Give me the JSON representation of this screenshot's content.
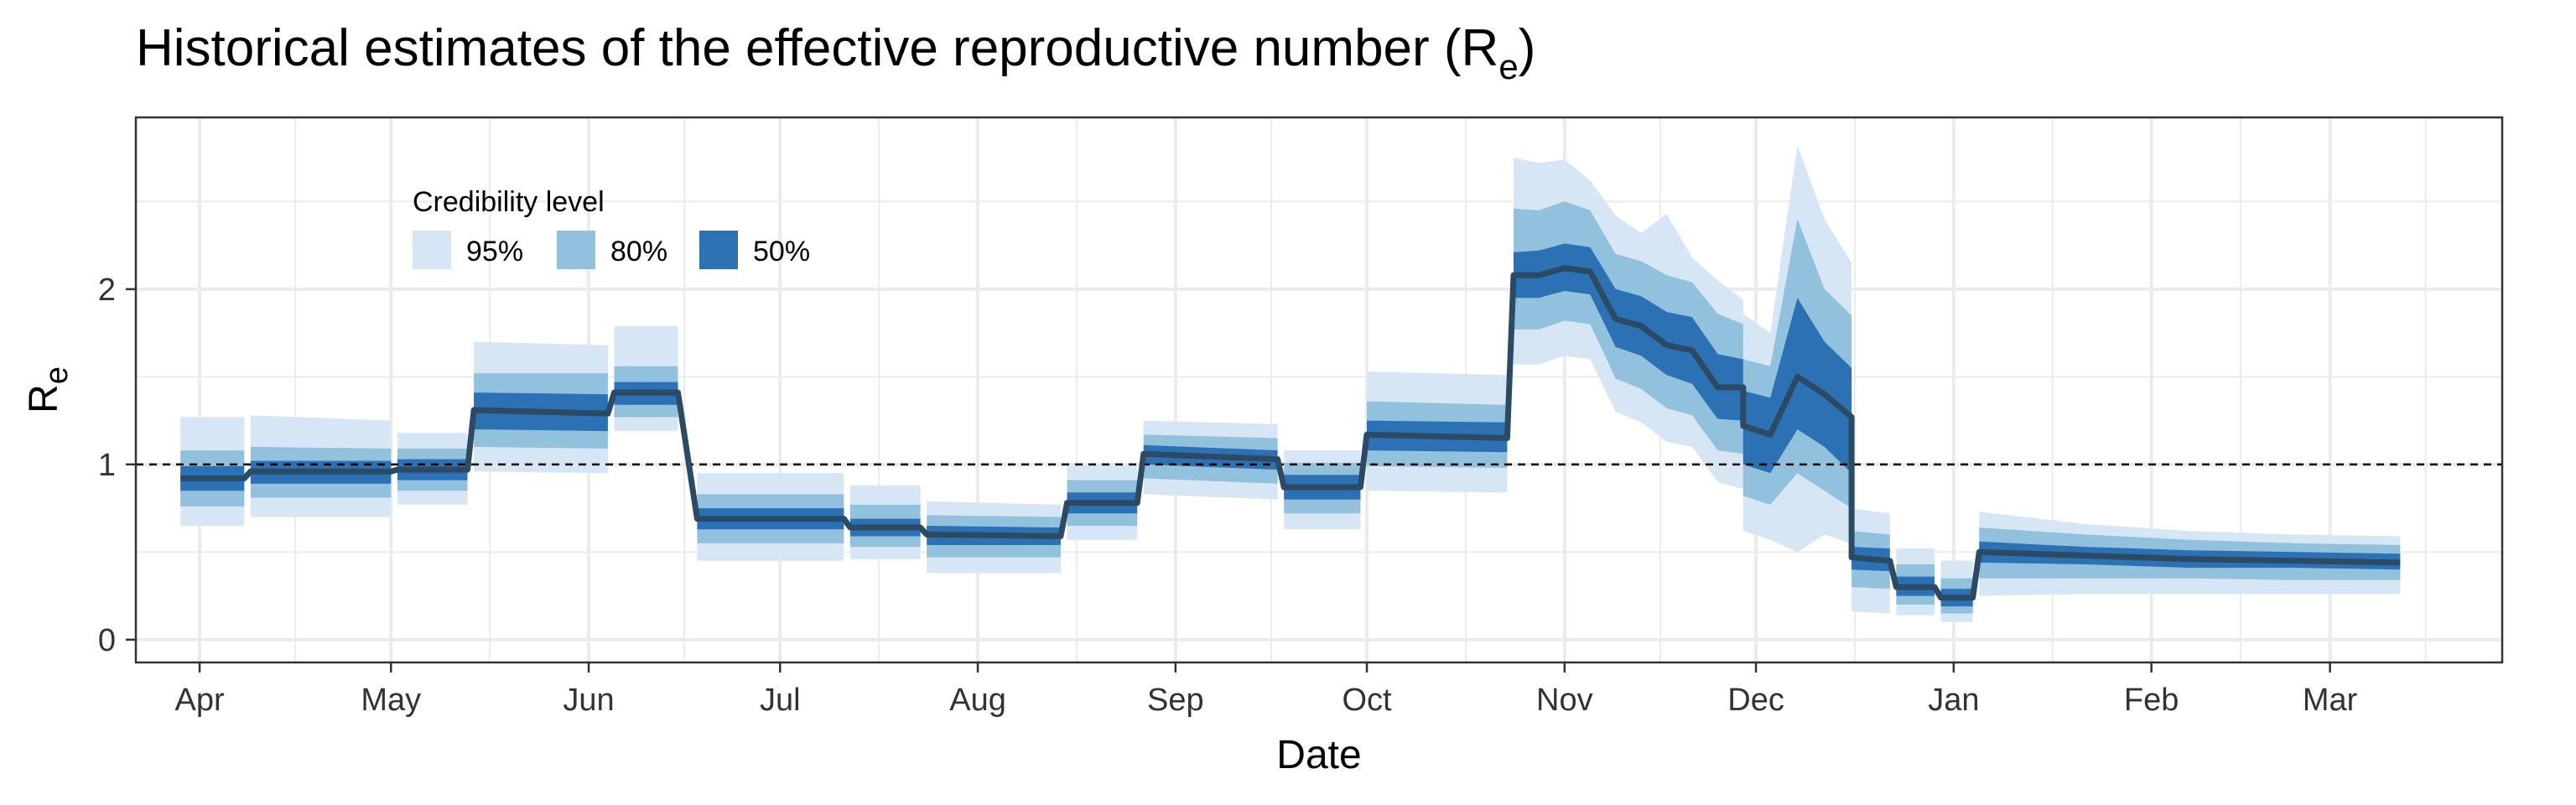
{
  "chart_data": {
    "type": "area",
    "title": "Historical estimates of the effective reproductive number (R",
    "title_subscript": "e",
    "title_suffix": ")",
    "xlabel": "Date",
    "ylabel": "R",
    "ylabel_subscript": "e",
    "x_ticks": [
      {
        "date": "2020-04-01",
        "label": "Apr"
      },
      {
        "date": "2020-05-01",
        "label": "May"
      },
      {
        "date": "2020-06-01",
        "label": "Jun"
      },
      {
        "date": "2020-07-01",
        "label": "Jul"
      },
      {
        "date": "2020-08-01",
        "label": "Aug"
      },
      {
        "date": "2020-09-01",
        "label": "Sep"
      },
      {
        "date": "2020-10-01",
        "label": "Oct"
      },
      {
        "date": "2020-11-01",
        "label": "Nov"
      },
      {
        "date": "2020-12-01",
        "label": "Dec"
      },
      {
        "date": "2021-01-01",
        "label": "Jan"
      },
      {
        "date": "2021-02-01",
        "label": "Feb"
      },
      {
        "date": "2021-03-01",
        "label": "Mar"
      }
    ],
    "xlim": [
      "2020-03-22",
      "2021-03-28"
    ],
    "y_ticks": [
      0,
      1,
      2
    ],
    "ylim": [
      -0.13,
      2.98
    ],
    "reference_line": 1,
    "grid": true,
    "legend": {
      "title": "Credibility level",
      "placement": "top-left",
      "items": [
        {
          "label": "95%",
          "color": "#d6e6f4"
        },
        {
          "label": "80%",
          "color": "#92c1de"
        },
        {
          "label": "50%",
          "color": "#2b71b4"
        }
      ]
    },
    "colors": {
      "band95": "#d6e6f4",
      "band80": "#92c1de",
      "band50": "#2b71b4",
      "median_line": "#2c4a63",
      "grid": "#ebebeb",
      "panel_border": "#333333"
    },
    "segments": [
      {
        "start": "2020-03-29",
        "end": "2020-04-08",
        "median": [
          0.92,
          0.92
        ],
        "lo50": [
          0.85,
          0.85
        ],
        "hi50": [
          0.99,
          0.99
        ],
        "lo80": [
          0.76,
          0.76
        ],
        "hi80": [
          1.08,
          1.08
        ],
        "lo95": [
          0.65,
          0.65
        ],
        "hi95": [
          1.27,
          1.27
        ]
      },
      {
        "start": "2020-04-09",
        "end": "2020-05-01",
        "median": [
          0.96,
          0.96
        ],
        "lo50": [
          0.89,
          0.89
        ],
        "hi50": [
          1.02,
          1.02
        ],
        "lo80": [
          0.81,
          0.81
        ],
        "hi80": [
          1.1,
          1.09
        ],
        "lo95": [
          0.7,
          0.7
        ],
        "hi95": [
          1.28,
          1.25
        ]
      },
      {
        "start": "2020-05-02",
        "end": "2020-05-13",
        "median": [
          0.97,
          0.97
        ],
        "lo50": [
          0.91,
          0.91
        ],
        "hi50": [
          1.03,
          1.03
        ],
        "lo80": [
          0.85,
          0.85
        ],
        "hi80": [
          1.09,
          1.09
        ],
        "lo95": [
          0.77,
          0.77
        ],
        "hi95": [
          1.18,
          1.18
        ]
      },
      {
        "start": "2020-05-14",
        "end": "2020-06-04",
        "median": [
          1.31,
          1.29
        ],
        "lo50": [
          1.2,
          1.19
        ],
        "hi50": [
          1.41,
          1.4
        ],
        "lo80": [
          1.1,
          1.09
        ],
        "hi80": [
          1.52,
          1.52
        ],
        "lo95": [
          0.96,
          0.95
        ],
        "hi95": [
          1.7,
          1.68
        ]
      },
      {
        "start": "2020-06-05",
        "end": "2020-06-15",
        "median": [
          1.41,
          1.41
        ],
        "lo50": [
          1.34,
          1.34
        ],
        "hi50": [
          1.47,
          1.47
        ],
        "lo80": [
          1.27,
          1.27
        ],
        "hi80": [
          1.56,
          1.56
        ],
        "lo95": [
          1.19,
          1.19
        ],
        "hi95": [
          1.79,
          1.79
        ]
      },
      {
        "start": "2020-06-18",
        "end": "2020-07-11",
        "median": [
          0.69,
          0.69
        ],
        "lo50": [
          0.63,
          0.63
        ],
        "hi50": [
          0.75,
          0.75
        ],
        "lo80": [
          0.55,
          0.55
        ],
        "hi80": [
          0.83,
          0.83
        ],
        "lo95": [
          0.45,
          0.45
        ],
        "hi95": [
          0.95,
          0.95
        ]
      },
      {
        "start": "2020-07-12",
        "end": "2020-07-23",
        "median": [
          0.64,
          0.64
        ],
        "lo50": [
          0.59,
          0.59
        ],
        "hi50": [
          0.69,
          0.69
        ],
        "lo80": [
          0.53,
          0.53
        ],
        "hi80": [
          0.77,
          0.77
        ],
        "lo95": [
          0.46,
          0.46
        ],
        "hi95": [
          0.88,
          0.88
        ]
      },
      {
        "start": "2020-07-24",
        "end": "2020-08-14",
        "median": [
          0.6,
          0.59
        ],
        "lo50": [
          0.54,
          0.54
        ],
        "hi50": [
          0.65,
          0.64
        ],
        "lo80": [
          0.47,
          0.47
        ],
        "hi80": [
          0.71,
          0.7
        ],
        "lo95": [
          0.38,
          0.38
        ],
        "hi95": [
          0.79,
          0.77
        ]
      },
      {
        "start": "2020-08-15",
        "end": "2020-08-26",
        "median": [
          0.78,
          0.78
        ],
        "lo50": [
          0.72,
          0.72
        ],
        "hi50": [
          0.84,
          0.84
        ],
        "lo80": [
          0.65,
          0.65
        ],
        "hi80": [
          0.91,
          0.91
        ],
        "lo95": [
          0.57,
          0.57
        ],
        "hi95": [
          1.0,
          1.0
        ]
      },
      {
        "start": "2020-08-27",
        "end": "2020-09-17",
        "median": [
          1.06,
          1.03
        ],
        "lo50": [
          1.0,
          0.97
        ],
        "hi50": [
          1.11,
          1.08
        ],
        "lo80": [
          0.92,
          0.89
        ],
        "hi80": [
          1.17,
          1.15
        ],
        "lo95": [
          0.83,
          0.8
        ],
        "hi95": [
          1.25,
          1.23
        ]
      },
      {
        "start": "2020-09-18",
        "end": "2020-09-30",
        "median": [
          0.87,
          0.87
        ],
        "lo50": [
          0.8,
          0.8
        ],
        "hi50": [
          0.94,
          0.94
        ],
        "lo80": [
          0.72,
          0.72
        ],
        "hi80": [
          1.01,
          1.01
        ],
        "lo95": [
          0.63,
          0.63
        ],
        "hi95": [
          1.08,
          1.08
        ]
      },
      {
        "start": "2020-10-01",
        "end": "2020-10-23",
        "median": [
          1.17,
          1.15
        ],
        "lo50": [
          1.08,
          1.07
        ],
        "hi50": [
          1.25,
          1.24
        ],
        "lo80": [
          0.99,
          0.98
        ],
        "hi80": [
          1.36,
          1.34
        ],
        "lo95": [
          0.85,
          0.84
        ],
        "hi95": [
          1.53,
          1.51
        ]
      },
      {
        "start": "2020-10-24",
        "end": "2020-11-29",
        "median": [
          2.08,
          2.08,
          2.12,
          2.1,
          1.83,
          1.79,
          1.68,
          1.65,
          1.44,
          1.44
        ],
        "lo50": [
          1.95,
          1.95,
          1.99,
          1.97,
          1.67,
          1.62,
          1.51,
          1.46,
          1.26,
          1.25
        ],
        "hi50": [
          2.21,
          2.22,
          2.26,
          2.24,
          2.0,
          1.96,
          1.87,
          1.84,
          1.63,
          1.6
        ],
        "lo80": [
          1.77,
          1.77,
          1.82,
          1.8,
          1.49,
          1.43,
          1.32,
          1.28,
          1.08,
          1.06
        ],
        "hi80": [
          2.46,
          2.45,
          2.5,
          2.45,
          2.2,
          2.16,
          2.08,
          2.04,
          1.86,
          1.8
        ],
        "lo95": [
          1.57,
          1.57,
          1.62,
          1.6,
          1.3,
          1.24,
          1.13,
          1.1,
          0.9,
          0.86
        ],
        "hi95": [
          2.75,
          2.72,
          2.74,
          2.62,
          2.42,
          2.32,
          2.43,
          2.18,
          2.05,
          1.94
        ]
      },
      {
        "start": "2020-11-29",
        "end": "2020-12-16",
        "median": [
          1.22,
          1.17,
          1.5,
          1.4,
          1.27
        ],
        "lo50": [
          1.0,
          0.95,
          1.2,
          1.1,
          0.95
        ],
        "hi50": [
          1.42,
          1.38,
          1.95,
          1.7,
          1.55
        ],
        "lo80": [
          0.82,
          0.77,
          0.95,
          0.85,
          0.75
        ],
        "hi80": [
          1.6,
          1.56,
          2.4,
          2.0,
          1.85
        ],
        "lo95": [
          0.62,
          0.57,
          0.5,
          0.6,
          0.55
        ],
        "hi95": [
          1.86,
          1.75,
          2.82,
          2.4,
          2.15
        ]
      },
      {
        "start": "2020-12-16",
        "end": "2020-12-22",
        "median": [
          0.47,
          0.45
        ],
        "lo50": [
          0.4,
          0.39
        ],
        "hi50": [
          0.53,
          0.52
        ],
        "lo80": [
          0.3,
          0.29
        ],
        "hi80": [
          0.62,
          0.6
        ],
        "lo95": [
          0.16,
          0.15
        ],
        "hi95": [
          0.75,
          0.72
        ]
      },
      {
        "start": "2020-12-23",
        "end": "2020-12-29",
        "median": [
          0.3,
          0.3
        ],
        "lo50": [
          0.25,
          0.25
        ],
        "hi50": [
          0.36,
          0.36
        ],
        "lo80": [
          0.2,
          0.2
        ],
        "hi80": [
          0.43,
          0.43
        ],
        "lo95": [
          0.14,
          0.14
        ],
        "hi95": [
          0.52,
          0.52
        ]
      },
      {
        "start": "2020-12-30",
        "end": "2021-01-04",
        "median": [
          0.24,
          0.24
        ],
        "lo50": [
          0.19,
          0.19
        ],
        "hi50": [
          0.29,
          0.29
        ],
        "lo80": [
          0.15,
          0.15
        ],
        "hi80": [
          0.35,
          0.35
        ],
        "lo95": [
          0.1,
          0.1
        ],
        "hi95": [
          0.45,
          0.45
        ]
      },
      {
        "start": "2021-01-05",
        "end": "2021-03-12",
        "median": [
          0.5,
          0.48,
          0.46,
          0.45,
          0.44
        ],
        "lo50": [
          0.44,
          0.43,
          0.41,
          0.41,
          0.4
        ],
        "hi50": [
          0.56,
          0.53,
          0.51,
          0.5,
          0.49
        ],
        "lo80": [
          0.35,
          0.35,
          0.35,
          0.34,
          0.34
        ],
        "hi80": [
          0.64,
          0.6,
          0.57,
          0.55,
          0.54
        ],
        "lo95": [
          0.25,
          0.26,
          0.26,
          0.26,
          0.26
        ],
        "hi95": [
          0.73,
          0.66,
          0.62,
          0.6,
          0.59
        ]
      }
    ]
  }
}
